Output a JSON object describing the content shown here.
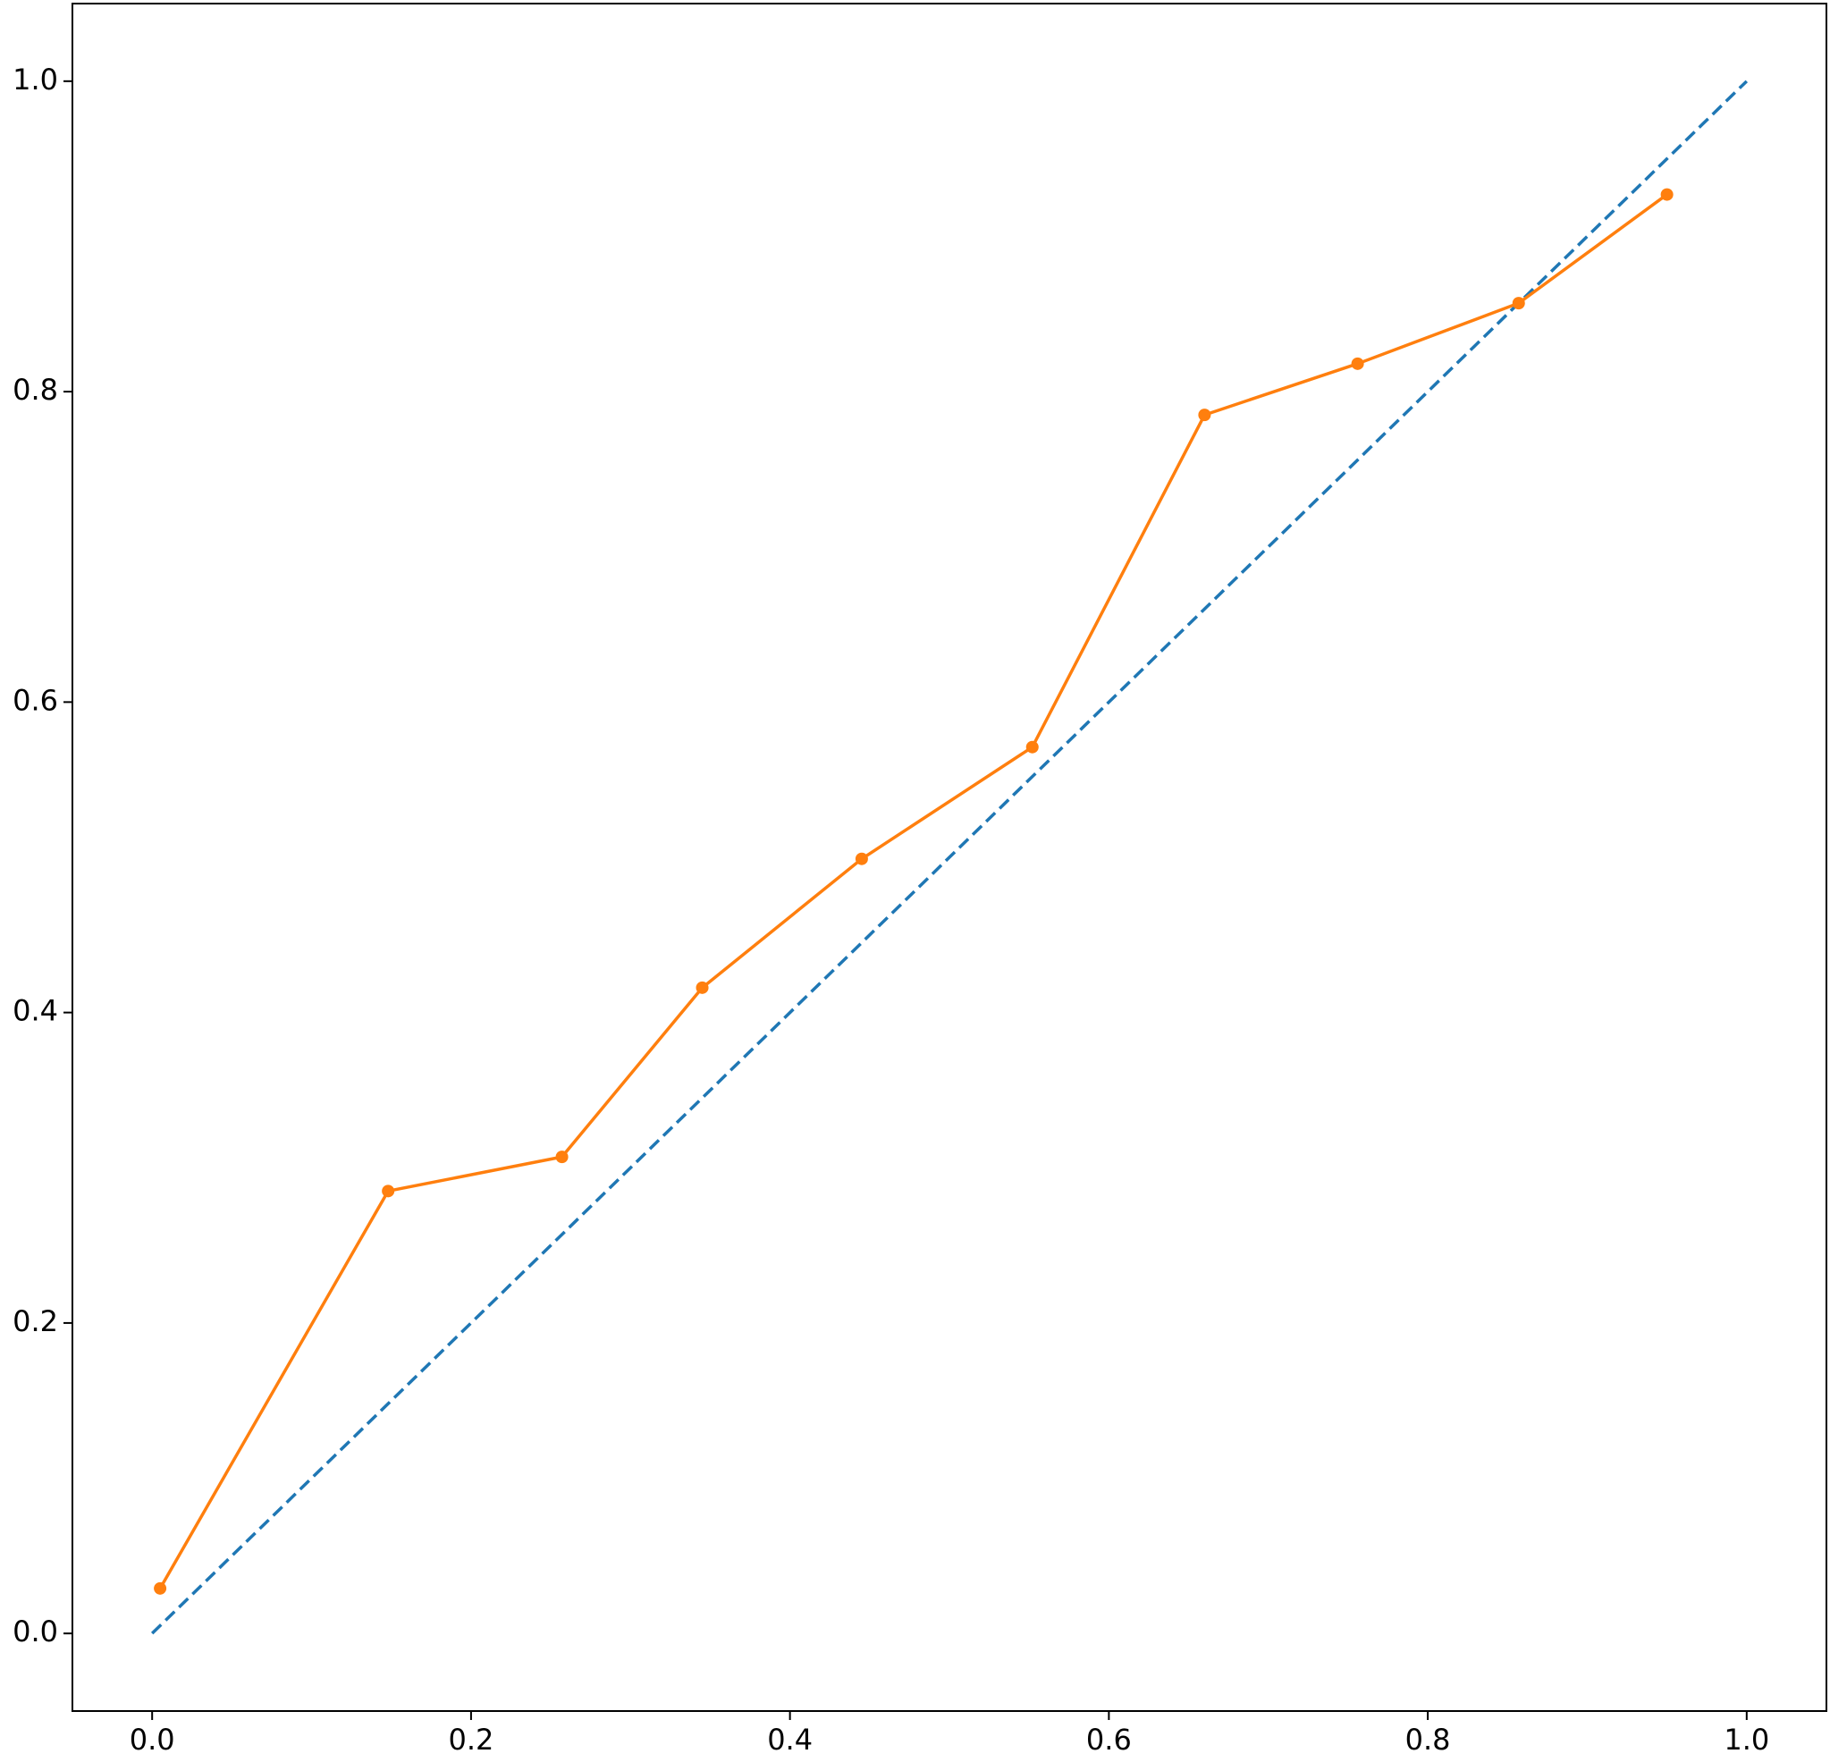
{
  "chart_data": {
    "type": "line",
    "series": [
      {
        "color": "#1f77b4",
        "dashed": true,
        "markers": false,
        "x": [
          0,
          1
        ],
        "values": [
          0,
          1
        ]
      },
      {
        "color": "#ff7f0e",
        "dashed": false,
        "markers": true,
        "x": [
          0.005,
          0.148,
          0.257,
          0.345,
          0.445,
          0.552,
          0.66,
          0.756,
          0.857,
          0.95
        ],
        "values": [
          0.029,
          0.285,
          0.307,
          0.416,
          0.499,
          0.571,
          0.785,
          0.818,
          0.857,
          0.927
        ]
      }
    ],
    "xlim": [
      -0.05,
      1.05
    ],
    "ylim": [
      -0.05,
      1.05
    ],
    "xticks": [
      {
        "value": 0,
        "label": "0.0"
      },
      0.2,
      0.4,
      0.6,
      0.8,
      {
        "value": 1,
        "label": "1.0"
      }
    ],
    "yticks": [
      {
        "value": 0,
        "label": "0.0"
      },
      0.2,
      0.4,
      0.6,
      0.8,
      {
        "value": 1,
        "label": "1.0"
      }
    ],
    "grid": false
  }
}
